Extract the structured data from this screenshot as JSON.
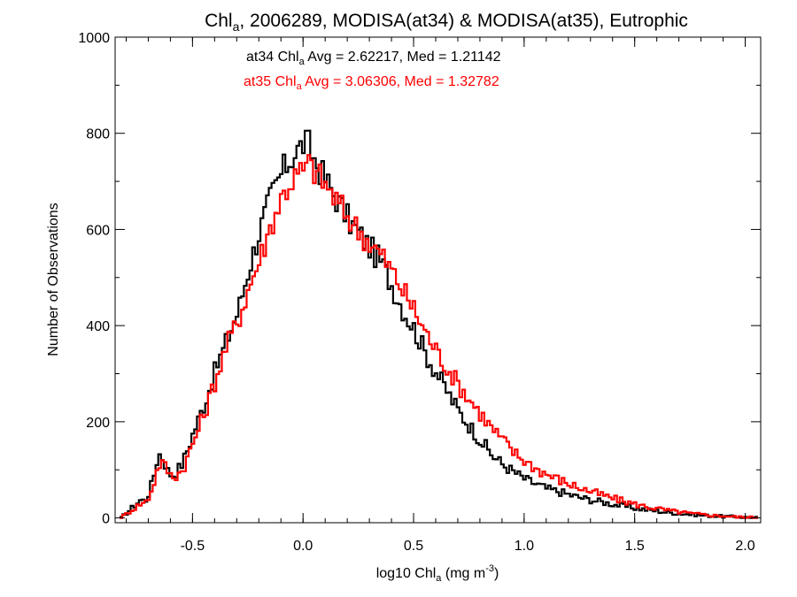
{
  "chart_data": {
    "type": "line",
    "title": {
      "main": "Chl",
      "subscript": "a",
      "rest": ", 2006289, MODISA(at34) & MODISA(at35), Eutrophic"
    },
    "xlabel": {
      "main": "log10 Chl",
      "subscript": "a",
      "unit_prefix": " (mg m",
      "superscript": "-3",
      "unit_suffix": ")"
    },
    "ylabel": "Number of Observations",
    "xlim": [
      -0.85,
      2.07
    ],
    "ylim": [
      -10,
      1000
    ],
    "xticks": [
      -0.5,
      0.0,
      0.5,
      1.0,
      1.5,
      2.0
    ],
    "xtick_labels": [
      "-0.5",
      "0.0",
      "0.5",
      "1.0",
      "1.5",
      "2.0"
    ],
    "yticks": [
      0,
      200,
      400,
      600,
      800,
      1000
    ],
    "ytick_labels": [
      "0",
      "200",
      "400",
      "600",
      "800",
      "1000"
    ],
    "grid": false,
    "annotations": [
      {
        "prefix": "at34 Chl",
        "subscript": "a",
        "suffix": " Avg = 2.62217, Med = 1.21142",
        "color": "#000000"
      },
      {
        "prefix": "at35 Chl",
        "subscript": "a",
        "suffix": " Avg = 3.06306, Med = 1.32782",
        "color": "#ff0000"
      }
    ],
    "series": [
      {
        "label": "at34",
        "color": "#000000",
        "points": [
          [
            -0.83,
            0
          ],
          [
            -0.8,
            12
          ],
          [
            -0.77,
            25
          ],
          [
            -0.74,
            38
          ],
          [
            -0.72,
            35
          ],
          [
            -0.7,
            55
          ],
          [
            -0.68,
            90
          ],
          [
            -0.66,
            135
          ],
          [
            -0.64,
            125
          ],
          [
            -0.62,
            100
          ],
          [
            -0.6,
            88
          ],
          [
            -0.58,
            95
          ],
          [
            -0.55,
            115
          ],
          [
            -0.5,
            180
          ],
          [
            -0.45,
            240
          ],
          [
            -0.4,
            310
          ],
          [
            -0.35,
            370
          ],
          [
            -0.3,
            430
          ],
          [
            -0.25,
            520
          ],
          [
            -0.2,
            600
          ],
          [
            -0.15,
            670
          ],
          [
            -0.1,
            720
          ],
          [
            -0.05,
            755
          ],
          [
            0.0,
            780
          ],
          [
            0.02,
            775
          ],
          [
            0.05,
            740
          ],
          [
            0.1,
            700
          ],
          [
            0.15,
            660
          ],
          [
            0.2,
            620
          ],
          [
            0.25,
            590
          ],
          [
            0.3,
            560
          ],
          [
            0.35,
            530
          ],
          [
            0.4,
            480
          ],
          [
            0.45,
            430
          ],
          [
            0.5,
            390
          ],
          [
            0.55,
            340
          ],
          [
            0.6,
            300
          ],
          [
            0.65,
            260
          ],
          [
            0.7,
            220
          ],
          [
            0.75,
            190
          ],
          [
            0.8,
            160
          ],
          [
            0.85,
            130
          ],
          [
            0.9,
            110
          ],
          [
            0.95,
            95
          ],
          [
            1.0,
            80
          ],
          [
            1.05,
            70
          ],
          [
            1.1,
            60
          ],
          [
            1.15,
            55
          ],
          [
            1.2,
            48
          ],
          [
            1.25,
            42
          ],
          [
            1.3,
            37
          ],
          [
            1.35,
            33
          ],
          [
            1.4,
            28
          ],
          [
            1.45,
            24
          ],
          [
            1.5,
            20
          ],
          [
            1.55,
            17
          ],
          [
            1.6,
            14
          ],
          [
            1.65,
            11
          ],
          [
            1.7,
            9
          ],
          [
            1.75,
            7
          ],
          [
            1.8,
            5
          ],
          [
            1.85,
            4
          ],
          [
            1.9,
            3
          ],
          [
            1.95,
            2
          ],
          [
            2.0,
            1
          ],
          [
            2.05,
            0
          ]
        ]
      },
      {
        "label": "at35",
        "color": "#ff0000",
        "points": [
          [
            -0.83,
            0
          ],
          [
            -0.8,
            10
          ],
          [
            -0.77,
            20
          ],
          [
            -0.74,
            30
          ],
          [
            -0.72,
            32
          ],
          [
            -0.7,
            45
          ],
          [
            -0.68,
            75
          ],
          [
            -0.66,
            110
          ],
          [
            -0.64,
            115
          ],
          [
            -0.62,
            100
          ],
          [
            -0.6,
            85
          ],
          [
            -0.58,
            88
          ],
          [
            -0.55,
            100
          ],
          [
            -0.5,
            160
          ],
          [
            -0.45,
            220
          ],
          [
            -0.4,
            290
          ],
          [
            -0.35,
            360
          ],
          [
            -0.3,
            410
          ],
          [
            -0.25,
            480
          ],
          [
            -0.2,
            540
          ],
          [
            -0.15,
            610
          ],
          [
            -0.1,
            670
          ],
          [
            -0.05,
            705
          ],
          [
            0.0,
            725
          ],
          [
            0.02,
            735
          ],
          [
            0.05,
            720
          ],
          [
            0.1,
            690
          ],
          [
            0.15,
            655
          ],
          [
            0.2,
            625
          ],
          [
            0.25,
            595
          ],
          [
            0.3,
            570
          ],
          [
            0.35,
            545
          ],
          [
            0.4,
            510
          ],
          [
            0.45,
            470
          ],
          [
            0.5,
            430
          ],
          [
            0.55,
            385
          ],
          [
            0.6,
            345
          ],
          [
            0.65,
            310
          ],
          [
            0.7,
            275
          ],
          [
            0.75,
            245
          ],
          [
            0.8,
            215
          ],
          [
            0.85,
            185
          ],
          [
            0.9,
            160
          ],
          [
            0.95,
            135
          ],
          [
            1.0,
            118
          ],
          [
            1.05,
            102
          ],
          [
            1.1,
            90
          ],
          [
            1.15,
            80
          ],
          [
            1.2,
            70
          ],
          [
            1.25,
            62
          ],
          [
            1.3,
            54
          ],
          [
            1.35,
            47
          ],
          [
            1.4,
            40
          ],
          [
            1.45,
            34
          ],
          [
            1.5,
            28
          ],
          [
            1.55,
            23
          ],
          [
            1.6,
            19
          ],
          [
            1.65,
            15
          ],
          [
            1.7,
            12
          ],
          [
            1.75,
            9
          ],
          [
            1.8,
            7
          ],
          [
            1.85,
            5
          ],
          [
            1.9,
            4
          ],
          [
            1.95,
            2
          ],
          [
            2.0,
            1
          ],
          [
            2.05,
            0
          ]
        ]
      }
    ]
  }
}
